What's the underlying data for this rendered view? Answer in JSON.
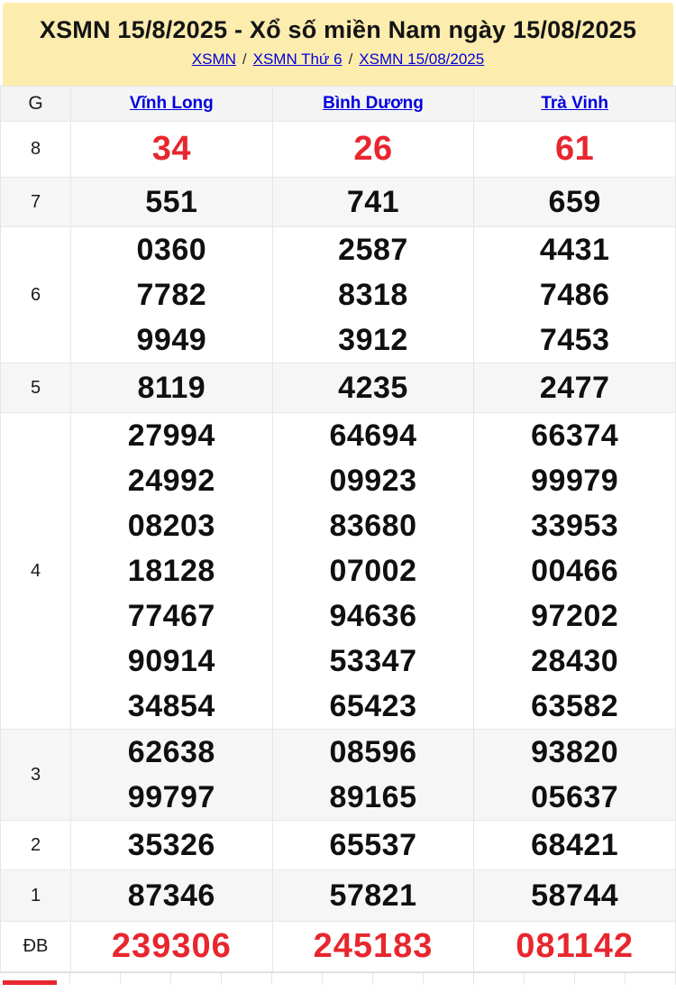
{
  "header": {
    "title": "XSMN 15/8/2025 - Xổ số miền Nam ngày 15/08/2025",
    "breadcrumb": [
      "XSMN",
      "XSMN Thứ 6",
      "XSMN 15/08/2025"
    ],
    "separator": "/"
  },
  "table": {
    "corner_label": "G",
    "columns": [
      "Vĩnh Long",
      "Bình Dương",
      "Trà Vinh"
    ],
    "rows": [
      {
        "label": "8",
        "highlight": true,
        "cells": [
          [
            "34"
          ],
          [
            "26"
          ],
          [
            "61"
          ]
        ]
      },
      {
        "label": "7",
        "highlight": false,
        "cells": [
          [
            "551"
          ],
          [
            "741"
          ],
          [
            "659"
          ]
        ]
      },
      {
        "label": "6",
        "highlight": false,
        "cells": [
          [
            "0360",
            "7782",
            "9949"
          ],
          [
            "2587",
            "8318",
            "3912"
          ],
          [
            "4431",
            "7486",
            "7453"
          ]
        ]
      },
      {
        "label": "5",
        "highlight": false,
        "cells": [
          [
            "8119"
          ],
          [
            "4235"
          ],
          [
            "2477"
          ]
        ]
      },
      {
        "label": "4",
        "highlight": false,
        "cells": [
          [
            "27994",
            "24992",
            "08203",
            "18128",
            "77467",
            "90914",
            "34854"
          ],
          [
            "64694",
            "09923",
            "83680",
            "07002",
            "94636",
            "53347",
            "65423"
          ],
          [
            "66374",
            "99979",
            "33953",
            "00466",
            "97202",
            "28430",
            "63582"
          ]
        ]
      },
      {
        "label": "3",
        "highlight": false,
        "cells": [
          [
            "62638",
            "99797"
          ],
          [
            "08596",
            "89165"
          ],
          [
            "93820",
            "05637"
          ]
        ]
      },
      {
        "label": "2",
        "highlight": false,
        "cells": [
          [
            "35326"
          ],
          [
            "65537"
          ],
          [
            "68421"
          ]
        ]
      },
      {
        "label": "1",
        "highlight": false,
        "cells": [
          [
            "87346"
          ],
          [
            "57821"
          ],
          [
            "58744"
          ]
        ]
      },
      {
        "label": "ĐB",
        "highlight": true,
        "cells": [
          [
            "239306"
          ],
          [
            "245183"
          ],
          [
            "081142"
          ]
        ]
      }
    ]
  },
  "colors": {
    "accent_red": "#e8262e",
    "link_blue": "#0000dd",
    "banner_bg": "#fcecae",
    "shaded_row_bg": "#f6f6f6"
  }
}
